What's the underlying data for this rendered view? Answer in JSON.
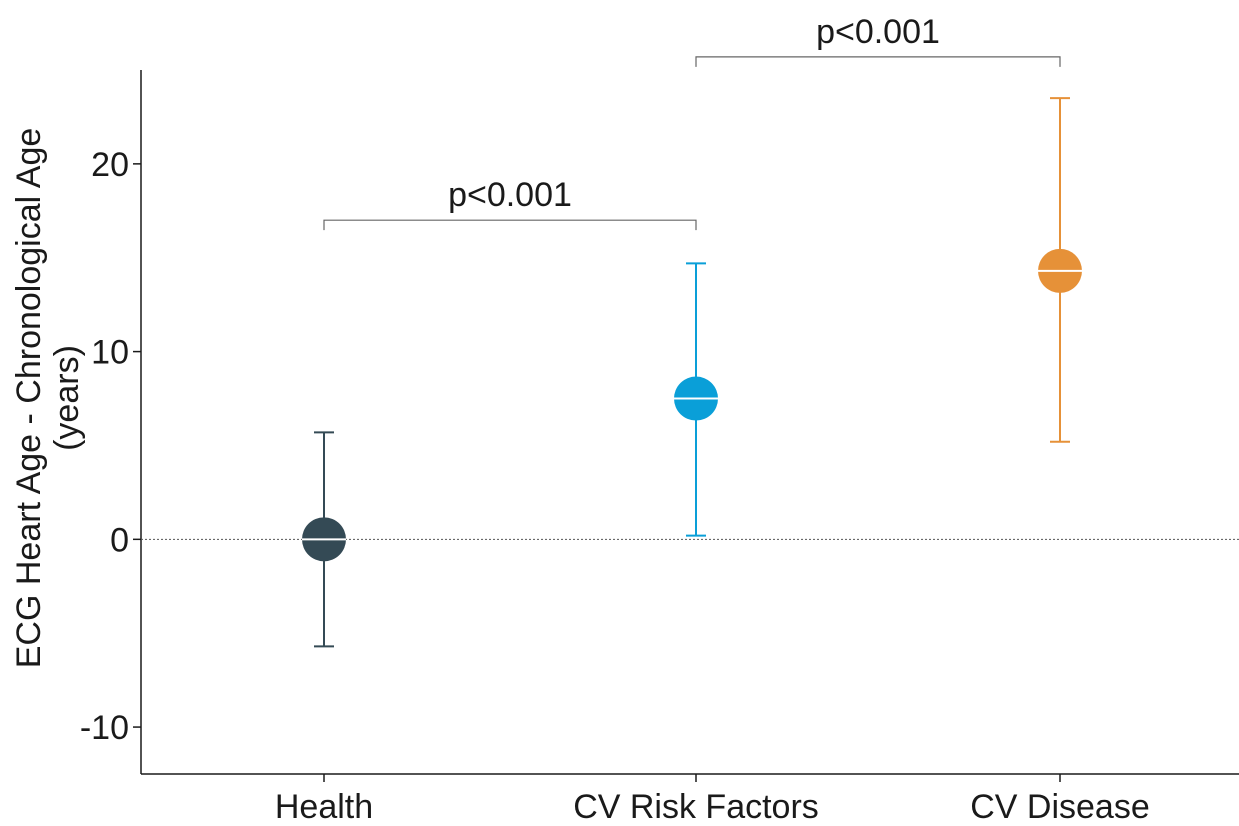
{
  "chart_data": {
    "type": "scatter",
    "ylabel": "ECG Heart Age - Chronological Age\n(years)",
    "categories": [
      "Health",
      "CV Risk Factors",
      "CV Disease"
    ],
    "ylim": [
      -12.5,
      25
    ],
    "yticks": [
      -10,
      0,
      10,
      20
    ],
    "series": [
      {
        "points": [
          {
            "category": "Health",
            "mean": 0,
            "lower": -5.7,
            "upper": 5.7,
            "color": "#344a55"
          },
          {
            "category": "CV Risk Factors",
            "mean": 7.5,
            "lower": 0.2,
            "upper": 14.7,
            "color": "#0a9fd8"
          },
          {
            "category": "CV Disease",
            "mean": 14.3,
            "lower": 5.2,
            "upper": 23.5,
            "color": "#e69138"
          }
        ]
      }
    ],
    "reference_line": {
      "y": 0,
      "style": "dotted"
    },
    "annotations": [
      {
        "from": "Health",
        "to": "CV Risk Factors",
        "text": "p<0.001",
        "y": 17
      },
      {
        "from": "CV Risk Factors",
        "to": "CV Disease",
        "text": "p<0.001",
        "y": 25.7
      }
    ],
    "grid": false,
    "legend": "none"
  }
}
